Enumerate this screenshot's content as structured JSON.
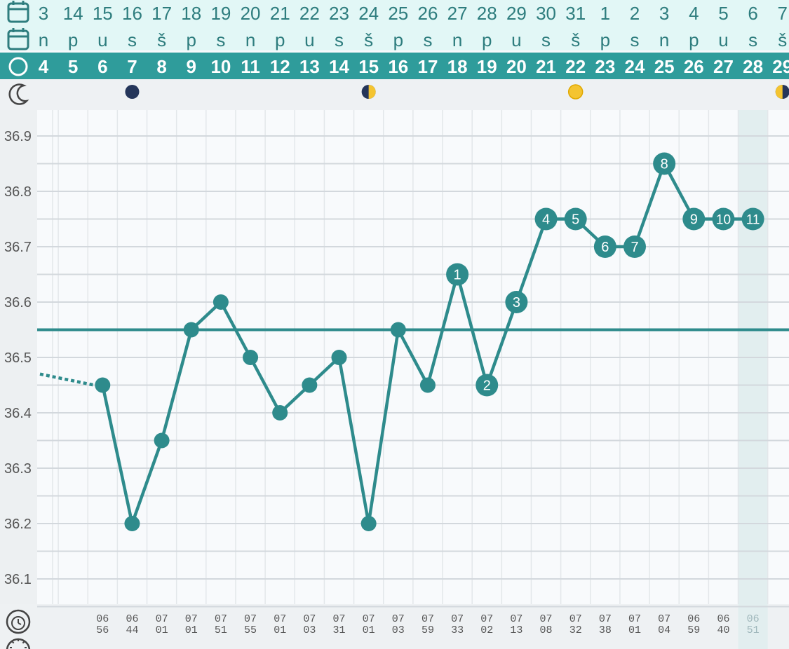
{
  "header": {
    "icons": [
      "calendar-icon",
      "calendar-icon",
      "cycle-circle-icon",
      "moon-icon"
    ],
    "dates": [
      "3",
      "14",
      "15",
      "16",
      "17",
      "18",
      "19",
      "20",
      "21",
      "22",
      "23",
      "24",
      "25",
      "26",
      "27",
      "28",
      "29",
      "30",
      "31",
      "1",
      "2",
      "3",
      "4",
      "5",
      "6",
      "7"
    ],
    "weekdays": [
      "n",
      "p",
      "u",
      "s",
      "š",
      "p",
      "s",
      "n",
      "p",
      "u",
      "s",
      "š",
      "p",
      "s",
      "n",
      "p",
      "u",
      "s",
      "š",
      "p",
      "s",
      "n",
      "p",
      "u",
      "s",
      "š"
    ],
    "cycle_days": [
      "4",
      "5",
      "6",
      "7",
      "8",
      "9",
      "10",
      "11",
      "12",
      "13",
      "14",
      "15",
      "16",
      "17",
      "18",
      "19",
      "20",
      "21",
      "22",
      "23",
      "24",
      "25",
      "26",
      "27",
      "28",
      "29"
    ],
    "moon_phases": [
      {
        "cycle_day": 7,
        "phase": "new-moon"
      },
      {
        "cycle_day": 15,
        "phase": "first-quarter"
      },
      {
        "cycle_day": 22,
        "phase": "full-moon"
      },
      {
        "cycle_day": 29,
        "phase": "last-quarter"
      }
    ]
  },
  "colors": {
    "accent": "#2e8b8c",
    "header_band": "#2f9c9b",
    "header_light": "#e2f7f6",
    "header_text": "#2e7d7e",
    "grid": "#d3d8dd",
    "today_column": "#e2eeef",
    "axis_text": "#555555"
  },
  "chart_data": {
    "type": "line",
    "x_unit": "cycle day",
    "xlim": [
      4,
      29
    ],
    "ylim": [
      36.05,
      36.95
    ],
    "yticks": [
      "36.9",
      "36.8",
      "36.7",
      "36.6",
      "36.5",
      "36.4",
      "36.3",
      "36.2",
      "36.1"
    ],
    "coverline": 36.55,
    "incoming_value": 36.47,
    "today_cycle_day": 28,
    "series": [
      {
        "points": [
          {
            "x": 6,
            "y": 36.45,
            "label": "",
            "time": "06 56"
          },
          {
            "x": 7,
            "y": 36.2,
            "label": "",
            "time": "06 44"
          },
          {
            "x": 8,
            "y": 36.35,
            "label": "",
            "time": "07 01"
          },
          {
            "x": 9,
            "y": 36.55,
            "label": "",
            "time": "07 01"
          },
          {
            "x": 10,
            "y": 36.6,
            "label": "",
            "time": "07 51"
          },
          {
            "x": 11,
            "y": 36.5,
            "label": "",
            "time": "07 55"
          },
          {
            "x": 12,
            "y": 36.4,
            "label": "",
            "time": "07 01"
          },
          {
            "x": 13,
            "y": 36.45,
            "label": "",
            "time": "07 03"
          },
          {
            "x": 14,
            "y": 36.5,
            "label": "",
            "time": "07 31"
          },
          {
            "x": 15,
            "y": 36.2,
            "label": "",
            "time": "07 01"
          },
          {
            "x": 16,
            "y": 36.55,
            "label": "",
            "time": "07 03"
          },
          {
            "x": 17,
            "y": 36.45,
            "label": "",
            "time": "07 59"
          },
          {
            "x": 18,
            "y": 36.65,
            "label": "1",
            "time": "07 33"
          },
          {
            "x": 19,
            "y": 36.45,
            "label": "2",
            "time": "07 02"
          },
          {
            "x": 20,
            "y": 36.6,
            "label": "3",
            "time": "07 13"
          },
          {
            "x": 21,
            "y": 36.75,
            "label": "4",
            "time": "07 08"
          },
          {
            "x": 22,
            "y": 36.75,
            "label": "5",
            "time": "07 32"
          },
          {
            "x": 23,
            "y": 36.7,
            "label": "6",
            "time": "07 38"
          },
          {
            "x": 24,
            "y": 36.7,
            "label": "7",
            "time": "07 01"
          },
          {
            "x": 25,
            "y": 36.85,
            "label": "8",
            "time": "07 04"
          },
          {
            "x": 26,
            "y": 36.75,
            "label": "9",
            "time": "06 59"
          },
          {
            "x": 27,
            "y": 36.75,
            "label": "10",
            "time": "06 40"
          },
          {
            "x": 28,
            "y": 36.75,
            "label": "11",
            "time": "06 51"
          }
        ]
      }
    ]
  },
  "footer": {
    "icons": [
      "alarm-clock-icon",
      "sun-icon"
    ]
  }
}
